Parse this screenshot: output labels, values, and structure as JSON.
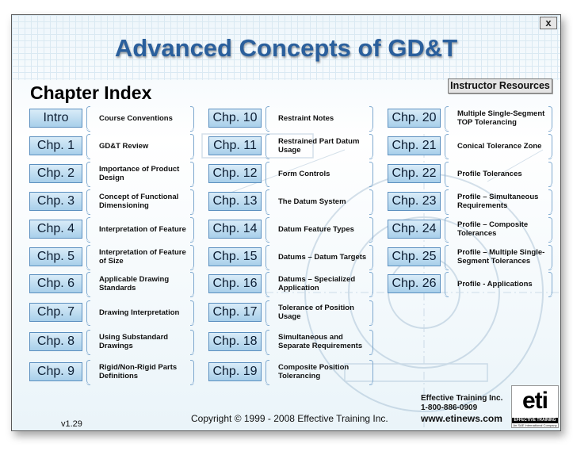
{
  "window": {
    "close_label": "x",
    "title": "Advanced Concepts of GD&T",
    "index_heading": "Chapter Index",
    "instructor_resources_label": "Instructor Resources"
  },
  "chapters": {
    "col1": [
      {
        "button": "Intro",
        "label": "Course Conventions"
      },
      {
        "button": "Chp. 1",
        "label": "GD&T Review"
      },
      {
        "button": "Chp. 2",
        "label": "Importance of Product Design"
      },
      {
        "button": "Chp. 3",
        "label": "Concept of Functional Dimensioning"
      },
      {
        "button": "Chp. 4",
        "label": "Interpretation of Feature"
      },
      {
        "button": "Chp. 5",
        "label": "Interpretation of Feature of Size"
      },
      {
        "button": "Chp. 6",
        "label": "Applicable Drawing Standards"
      },
      {
        "button": "Chp. 7",
        "label": "Drawing Interpretation"
      },
      {
        "button": "Chp. 8",
        "label": "Using Substandard Drawings"
      },
      {
        "button": "Chp. 9",
        "label": "Rigid/Non-Rigid Parts Definitions"
      }
    ],
    "col2": [
      {
        "button": "Chp. 10",
        "label": "Restraint Notes"
      },
      {
        "button": "Chp. 11",
        "label": "Restrained Part Datum Usage"
      },
      {
        "button": "Chp. 12",
        "label": "Form Controls"
      },
      {
        "button": "Chp. 13",
        "label": "The Datum System"
      },
      {
        "button": "Chp. 14",
        "label": "Datum Feature Types"
      },
      {
        "button": "Chp. 15",
        "label": "Datums – Datum Targets"
      },
      {
        "button": "Chp. 16",
        "label": "Datums – Specialized Application"
      },
      {
        "button": "Chp. 17",
        "label": "Tolerance of Position Usage"
      },
      {
        "button": "Chp. 18",
        "label": "Simultaneous and Separate Requirements"
      },
      {
        "button": "Chp. 19",
        "label": "Composite Position Tolerancing"
      }
    ],
    "col3": [
      {
        "button": "Chp. 20",
        "label": "Multiple Single-Segment TOP Tolerancing"
      },
      {
        "button": "Chp. 21",
        "label": "Conical Tolerance Zone"
      },
      {
        "button": "Chp. 22",
        "label": "Profile Tolerances"
      },
      {
        "button": "Chp. 23",
        "label": "Profile – Simultaneous Requirements"
      },
      {
        "button": "Chp. 24",
        "label": "Profile – Composite Tolerances"
      },
      {
        "button": "Chp. 25",
        "label": "Profile – Multiple Single-Segment Tolerances"
      },
      {
        "button": "Chp. 26",
        "label": "Profile - Applications"
      }
    ]
  },
  "footer": {
    "company_name": "Effective Training Inc.",
    "phone": "1-800-886-0909",
    "website": "www.etinews.com",
    "copyright": "Copyright © 1999 - 2008 Effective Training Inc.",
    "version": "v1.29",
    "logo_text": "eti",
    "logo_bar": "EFFECTIVE TRAINING INC.",
    "logo_sub": "An SAE International Company"
  },
  "colors": {
    "title": "#2a5f9c",
    "button_fill": "#a8cfea",
    "button_border": "#5b8fbf"
  }
}
